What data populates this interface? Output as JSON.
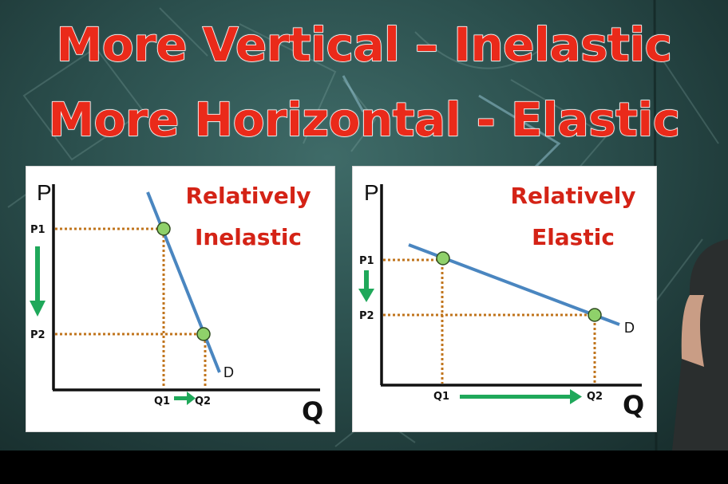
{
  "headline": {
    "line1": "More Vertical – Inelastic",
    "line2": "More Horizontal - Elastic"
  },
  "colors": {
    "headline_fill": "#ea2a1a",
    "demand_line": "#4a86c0",
    "guide_dots": "#c0741c",
    "point_fill": "#8fd16a",
    "arrow_green": "#1fa85a",
    "label_red": "#d42316"
  },
  "panels": [
    {
      "title_line1": "Relatively",
      "title_line2": "Inelastic",
      "y_axis_label": "P",
      "x_axis_label": "Q",
      "curve_label": "D",
      "price_labels": [
        "P1",
        "P2"
      ],
      "quantity_labels": [
        "Q1",
        "Q2"
      ]
    },
    {
      "title_line1": "Relatively",
      "title_line2": "Elastic",
      "y_axis_label": "P",
      "x_axis_label": "Q",
      "curve_label": "D",
      "price_labels": [
        "P1",
        "P2"
      ],
      "quantity_labels": [
        "Q1",
        "Q2"
      ]
    }
  ]
}
